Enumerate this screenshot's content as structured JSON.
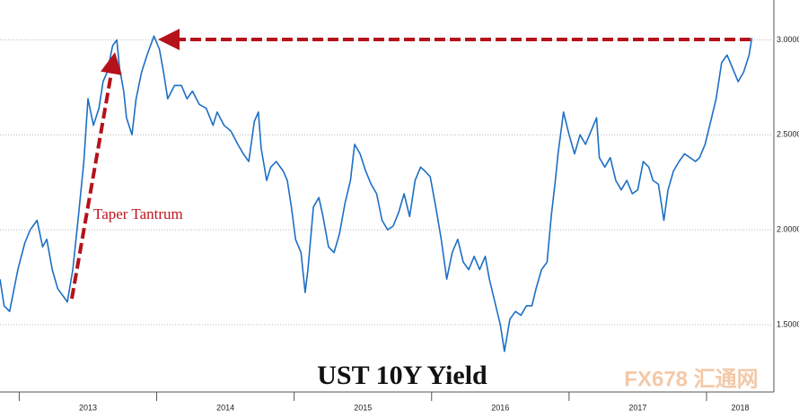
{
  "chart_data": {
    "type": "line",
    "title": "UST 10Y Yield",
    "annotations": [
      "Taper Tantrum"
    ],
    "watermark": "FX678 汇通网",
    "x": [
      2012.86,
      2012.89,
      2012.93,
      2012.99,
      2013.04,
      2013.08,
      2013.13,
      2013.17,
      2013.2,
      2013.24,
      2013.28,
      2013.33,
      2013.35,
      2013.39,
      2013.43,
      2013.47,
      2013.5,
      2013.54,
      2013.58,
      2013.61,
      2013.64,
      2013.68,
      2013.71,
      2013.73,
      2013.76,
      2013.78,
      2013.82,
      2013.85,
      2013.89,
      2013.93,
      2013.98,
      2014.02,
      2014.05,
      2014.08,
      2014.13,
      2014.18,
      2014.22,
      2014.26,
      2014.31,
      2014.36,
      2014.41,
      2014.44,
      2014.49,
      2014.54,
      2014.59,
      2014.63,
      2014.67,
      2014.71,
      2014.74,
      2014.76,
      2014.8,
      2014.83,
      2014.87,
      2014.92,
      2014.95,
      2014.98,
      2015.01,
      2015.05,
      2015.08,
      2015.1,
      2015.14,
      2015.18,
      2015.21,
      2015.25,
      2015.29,
      2015.33,
      2015.37,
      2015.41,
      2015.44,
      2015.48,
      2015.52,
      2015.56,
      2015.6,
      2015.64,
      2015.68,
      2015.72,
      2015.76,
      2015.8,
      2015.84,
      2015.88,
      2015.92,
      2015.95,
      2015.99,
      2016.03,
      2016.07,
      2016.11,
      2016.15,
      2016.19,
      2016.23,
      2016.27,
      2016.31,
      2016.35,
      2016.39,
      2016.42,
      2016.46,
      2016.5,
      2016.53,
      2016.57,
      2016.61,
      2016.65,
      2016.69,
      2016.73,
      2016.76,
      2016.8,
      2016.84,
      2016.87,
      2016.9,
      2016.92,
      2016.96,
      2017.0,
      2017.04,
      2017.08,
      2017.12,
      2017.16,
      2017.2,
      2017.22,
      2017.26,
      2017.3,
      2017.34,
      2017.38,
      2017.42,
      2017.46,
      2017.5,
      2017.54,
      2017.58,
      2017.61,
      2017.65,
      2017.69,
      2017.72,
      2017.76,
      2017.8,
      2017.84,
      2017.88,
      2017.92,
      2017.95,
      2017.99,
      2018.03,
      2018.07,
      2018.11,
      2018.15,
      2018.19,
      2018.23,
      2018.27,
      2018.31,
      2018.33
    ],
    "series": [
      {
        "name": "UST 10Y Yield",
        "color": "#1d6fc4",
        "values": [
          1.74,
          1.6,
          1.57,
          1.79,
          1.93,
          2.0,
          2.05,
          1.91,
          1.95,
          1.79,
          1.69,
          1.64,
          1.62,
          1.79,
          2.07,
          2.36,
          2.69,
          2.55,
          2.64,
          2.78,
          2.83,
          2.97,
          3.0,
          2.85,
          2.73,
          2.59,
          2.5,
          2.69,
          2.83,
          2.92,
          3.02,
          2.95,
          2.83,
          2.69,
          2.76,
          2.76,
          2.69,
          2.73,
          2.66,
          2.64,
          2.55,
          2.62,
          2.55,
          2.52,
          2.45,
          2.4,
          2.36,
          2.57,
          2.62,
          2.43,
          2.26,
          2.33,
          2.36,
          2.31,
          2.26,
          2.12,
          1.95,
          1.88,
          1.67,
          1.79,
          2.12,
          2.17,
          2.07,
          1.91,
          1.88,
          1.98,
          2.14,
          2.26,
          2.45,
          2.4,
          2.31,
          2.24,
          2.19,
          2.05,
          2.0,
          2.02,
          2.09,
          2.19,
          2.07,
          2.26,
          2.33,
          2.31,
          2.28,
          2.12,
          1.95,
          1.74,
          1.88,
          1.95,
          1.83,
          1.79,
          1.86,
          1.79,
          1.86,
          1.74,
          1.62,
          1.5,
          1.36,
          1.53,
          1.57,
          1.55,
          1.6,
          1.6,
          1.69,
          1.79,
          1.83,
          2.07,
          2.26,
          2.4,
          2.62,
          2.5,
          2.4,
          2.5,
          2.45,
          2.52,
          2.59,
          2.38,
          2.33,
          2.38,
          2.26,
          2.21,
          2.26,
          2.19,
          2.21,
          2.36,
          2.33,
          2.26,
          2.24,
          2.05,
          2.21,
          2.31,
          2.36,
          2.4,
          2.38,
          2.36,
          2.38,
          2.45,
          2.57,
          2.69,
          2.88,
          2.92,
          2.85,
          2.78,
          2.83,
          2.92,
          3.01
        ]
      }
    ],
    "xlim": [
      2012.86,
      2018.49
    ],
    "xticks": [
      2013,
      2014,
      2015,
      2016,
      2017,
      2018
    ],
    "ylim": [
      1.146,
      3.21
    ],
    "yticks": [
      {
        "value": 1.5,
        "label": "1.5000"
      },
      {
        "value": 2,
        "label": "2.0000"
      },
      {
        "value": 2.5,
        "label": "2.5000"
      },
      {
        "value": 3,
        "label": "3.0000"
      }
    ],
    "grid": true
  }
}
